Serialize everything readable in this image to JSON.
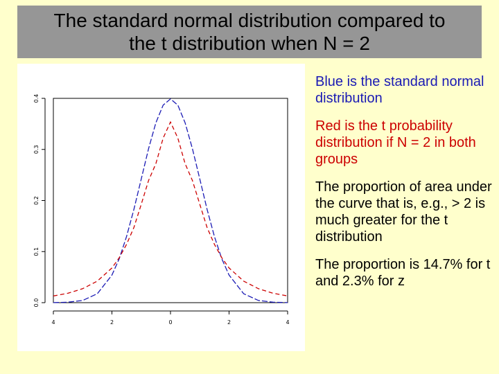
{
  "title": {
    "line1": "The standard normal distribution compared to",
    "line2": "the t distribution when N = 2"
  },
  "notes": [
    "Blue is the standard normal distribution",
    "Red is the t probability distribution if N = 2 in both groups",
    "The proportion of area under the curve that is, e.g., > 2 is much greater for the t distribution",
    "The proportion is 14.7% for t and 2.3% for z"
  ],
  "colors": {
    "background": "#ffffcc",
    "title_bar": "#969696",
    "normal": "#1a1ab4",
    "t": "#cc0000"
  },
  "chart_data": {
    "type": "line",
    "xlim": [
      -4,
      4
    ],
    "ylim": [
      0,
      0.4
    ],
    "x_ticks": [
      -4,
      -2,
      0,
      2,
      4
    ],
    "x_tick_labels": [
      "4",
      "2",
      "0",
      "2",
      "4"
    ],
    "y_ticks": [
      0.0,
      0.1,
      0.2,
      0.3,
      0.4
    ],
    "y_tick_labels": [
      "0.0",
      "0.1",
      "0.2",
      "0.3",
      "0.4"
    ],
    "grid": false,
    "series": [
      {
        "color": "#1a1ab4",
        "dash": "8 3",
        "x": [
          -4,
          -3.5,
          -3,
          -2.5,
          -2,
          -1.75,
          -1.5,
          -1.25,
          -1,
          -0.75,
          -0.5,
          -0.25,
          0,
          0.25,
          0.5,
          0.75,
          1,
          1.25,
          1.5,
          1.75,
          2,
          2.5,
          3,
          3.5,
          4
        ],
        "y": [
          0.0001,
          0.0009,
          0.0044,
          0.0175,
          0.054,
          0.0863,
          0.1295,
          0.1826,
          0.242,
          0.3011,
          0.3521,
          0.3867,
          0.3989,
          0.3867,
          0.3521,
          0.3011,
          0.242,
          0.1826,
          0.1295,
          0.0863,
          0.054,
          0.0175,
          0.0044,
          0.0009,
          0.0001
        ]
      },
      {
        "color": "#cc0000",
        "dash": "6 4",
        "x": [
          -4,
          -3.5,
          -3,
          -2.5,
          -2,
          -1.75,
          -1.5,
          -1.25,
          -1,
          -0.75,
          -0.5,
          -0.25,
          0,
          0.25,
          0.5,
          0.75,
          1,
          1.25,
          1.5,
          1.75,
          2,
          2.5,
          3,
          3.5,
          4
        ],
        "y": [
          0.0131,
          0.0185,
          0.0274,
          0.0422,
          0.068,
          0.0881,
          0.1142,
          0.1471,
          0.1925,
          0.2389,
          0.2722,
          0.3222,
          0.3536,
          0.3222,
          0.2722,
          0.2389,
          0.1925,
          0.1471,
          0.1142,
          0.0881,
          0.068,
          0.0422,
          0.0274,
          0.0185,
          0.0131
        ]
      }
    ]
  }
}
